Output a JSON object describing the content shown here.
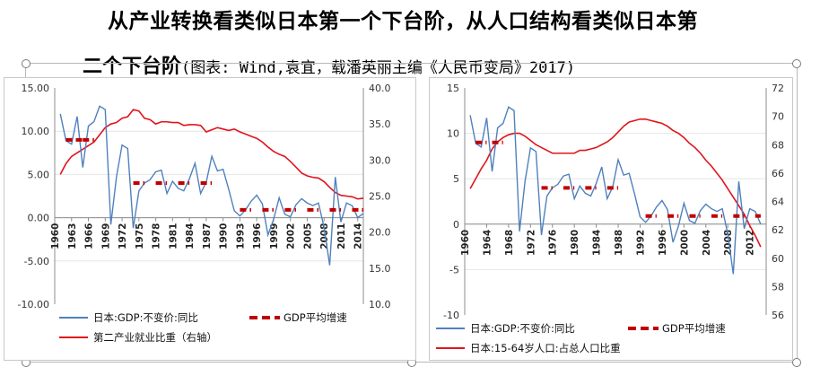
{
  "title": {
    "line1": "从产业转换看类似日本第一个下台阶，从人口结构看类似日本第",
    "line2_main": "二个下台阶",
    "line2_source": "(图表: Wind,袁宜，载潘英丽主编《人民币变局》2017)"
  },
  "colors": {
    "blue": "#4f81bd",
    "red": "#e0141c",
    "dash": "#c00000"
  },
  "chart_data": [
    {
      "type": "line",
      "x": [
        1961,
        1962,
        1963,
        1964,
        1965,
        1966,
        1967,
        1968,
        1969,
        1970,
        1971,
        1972,
        1973,
        1974,
        1975,
        1976,
        1977,
        1978,
        1979,
        1980,
        1981,
        1982,
        1983,
        1984,
        1985,
        1986,
        1987,
        1988,
        1989,
        1990,
        1991,
        1992,
        1993,
        1994,
        1995,
        1996,
        1997,
        1998,
        1999,
        2000,
        2001,
        2002,
        2003,
        2004,
        2005,
        2006,
        2007,
        2008,
        2009,
        2010,
        2011,
        2012,
        2013,
        2014,
        2015
      ],
      "xticks": [
        "1960",
        "1963",
        "1966",
        "1969",
        "1972",
        "1975",
        "1978",
        "1981",
        "1984",
        "1987",
        "1990",
        "1993",
        "1996",
        "1999",
        "2002",
        "2005",
        "2008",
        "2011",
        "2014"
      ],
      "xtick_years": [
        1960,
        1963,
        1966,
        1969,
        1972,
        1975,
        1978,
        1981,
        1984,
        1987,
        1990,
        1993,
        1996,
        1999,
        2002,
        2005,
        2008,
        2011,
        2014
      ],
      "xlim": [
        1960,
        2015
      ],
      "ylim_left": [
        -10,
        15
      ],
      "yticks_left": [
        "15.00",
        "10.00",
        "5.00",
        "0.00",
        "-5.00",
        "-10.00"
      ],
      "ylim_right": [
        10,
        40
      ],
      "yticks_right": [
        "40.0",
        "35.0",
        "30.0",
        "25.0",
        "20.0",
        "15.0",
        "10.0"
      ],
      "series": [
        {
          "name": "日本:GDP:不变价:同比",
          "axis": "left",
          "values": [
            12.0,
            8.9,
            8.5,
            11.7,
            5.8,
            10.6,
            11.1,
            12.9,
            12.5,
            -0.8,
            4.7,
            8.4,
            8.0,
            -1.2,
            3.1,
            4.0,
            4.4,
            5.3,
            5.5,
            2.8,
            4.2,
            3.4,
            3.1,
            4.5,
            6.3,
            2.8,
            4.1,
            7.1,
            5.4,
            5.6,
            3.3,
            0.8,
            0.2,
            0.9,
            1.9,
            2.6,
            1.6,
            -2.0,
            -0.2,
            2.3,
            0.4,
            0.1,
            1.5,
            2.2,
            1.7,
            1.4,
            1.7,
            -1.1,
            -5.5,
            4.7,
            -0.5,
            1.7,
            1.4,
            0.0,
            0.5
          ]
        },
        {
          "name": "第二产业就业比重（右轴）",
          "axis": "right",
          "values": [
            28.0,
            29.5,
            30.5,
            31.0,
            31.5,
            32.0,
            32.5,
            33.5,
            34.5,
            35.0,
            35.2,
            35.8,
            36.0,
            37.0,
            36.8,
            35.8,
            35.6,
            35.0,
            35.3,
            35.3,
            35.2,
            35.2,
            34.8,
            34.9,
            34.9,
            34.8,
            33.9,
            34.2,
            34.5,
            34.3,
            34.1,
            34.3,
            33.9,
            33.6,
            33.3,
            33.0,
            32.5,
            31.8,
            31.2,
            30.8,
            30.5,
            29.8,
            29.0,
            28.2,
            27.8,
            27.6,
            27.5,
            27.0,
            26.2,
            25.5,
            25.1,
            25.0,
            24.9,
            24.6,
            24.7
          ]
        },
        {
          "name": "GDP平均增速",
          "axis": "left",
          "style": "dashed",
          "segments": [
            {
              "x": [
                1962,
                1965
              ],
              "y": 9.0
            },
            {
              "x": [
                1965,
                1967
              ],
              "y": 9.0
            },
            {
              "x": [
                1974,
                1976
              ],
              "y": 4.0
            },
            {
              "x": [
                1978,
                1980
              ],
              "y": 4.0
            },
            {
              "x": [
                1982,
                1984
              ],
              "y": 4.0
            },
            {
              "x": [
                1986,
                1988
              ],
              "y": 4.0
            },
            {
              "x": [
                1993,
                1995
              ],
              "y": 0.9
            },
            {
              "x": [
                1997,
                1999
              ],
              "y": 0.9
            },
            {
              "x": [
                2001,
                2003
              ],
              "y": 0.9
            },
            {
              "x": [
                2005,
                2007
              ],
              "y": 0.9
            },
            {
              "x": [
                2009,
                2011
              ],
              "y": 0.9
            },
            {
              "x": [
                2013,
                2015
              ],
              "y": 0.9
            }
          ]
        }
      ],
      "legend": [
        {
          "label": "日本:GDP:不变价:同比",
          "kind": "blue"
        },
        {
          "label": "GDP平均增速",
          "kind": "dash"
        },
        {
          "label": "第二产业就业比重（右轴）",
          "kind": "red"
        }
      ]
    },
    {
      "type": "line",
      "x": [
        1961,
        1962,
        1963,
        1964,
        1965,
        1966,
        1967,
        1968,
        1969,
        1970,
        1971,
        1972,
        1973,
        1974,
        1975,
        1976,
        1977,
        1978,
        1979,
        1980,
        1981,
        1982,
        1983,
        1984,
        1985,
        1986,
        1987,
        1988,
        1989,
        1990,
        1991,
        1992,
        1993,
        1994,
        1995,
        1996,
        1997,
        1998,
        1999,
        2000,
        2001,
        2002,
        2003,
        2004,
        2005,
        2006,
        2007,
        2008,
        2009,
        2010,
        2011,
        2012,
        2013,
        2014
      ],
      "xticks": [
        "1960",
        "1964",
        "1968",
        "1972",
        "1976",
        "1980",
        "1984",
        "1988",
        "1992",
        "1996",
        "2000",
        "2004",
        "2008",
        "2012"
      ],
      "xtick_years": [
        1960,
        1964,
        1968,
        1972,
        1976,
        1980,
        1984,
        1988,
        1992,
        1996,
        2000,
        2004,
        2008,
        2012
      ],
      "xlim": [
        1960,
        2015
      ],
      "ylim_left": [
        -10,
        15
      ],
      "yticks_left": [
        "15",
        "10",
        "5",
        "0",
        "-5",
        "-10"
      ],
      "ylim_right": [
        56,
        72
      ],
      "yticks_right": [
        "72",
        "70",
        "68",
        "66",
        "64",
        "62",
        "60",
        "58",
        "56"
      ],
      "series": [
        {
          "name": "日本:GDP:不变价:同比",
          "axis": "left",
          "values": [
            12.0,
            8.9,
            8.5,
            11.7,
            5.8,
            10.6,
            11.1,
            12.9,
            12.5,
            -0.8,
            4.7,
            8.4,
            8.0,
            -1.2,
            3.1,
            4.0,
            4.4,
            5.3,
            5.5,
            2.8,
            4.2,
            3.4,
            3.1,
            4.5,
            6.3,
            2.8,
            4.1,
            7.1,
            5.4,
            5.6,
            3.3,
            0.8,
            0.2,
            0.9,
            1.9,
            2.6,
            1.6,
            -2.0,
            -0.2,
            2.3,
            0.4,
            0.1,
            1.5,
            2.2,
            1.7,
            1.4,
            1.7,
            -1.1,
            -5.5,
            4.7,
            -0.5,
            1.7,
            1.4,
            0.0
          ]
        },
        {
          "name": "日本:15-64岁人口:占总人口比重",
          "axis": "right",
          "values": [
            64.9,
            65.6,
            66.3,
            66.9,
            67.7,
            68.2,
            68.5,
            68.7,
            68.8,
            68.8,
            68.6,
            68.3,
            68.0,
            67.8,
            67.6,
            67.4,
            67.4,
            67.4,
            67.4,
            67.4,
            67.6,
            67.6,
            67.7,
            67.8,
            68.0,
            68.2,
            68.5,
            68.9,
            69.3,
            69.6,
            69.7,
            69.8,
            69.8,
            69.7,
            69.6,
            69.5,
            69.3,
            69.0,
            68.8,
            68.5,
            68.1,
            67.8,
            67.4,
            66.9,
            66.5,
            66.0,
            65.5,
            64.9,
            64.3,
            63.7,
            63.1,
            62.3,
            61.6,
            60.8
          ]
        },
        {
          "name": "GDP平均增速",
          "axis": "left",
          "style": "dashed",
          "segments": [
            {
              "x": [
                1962,
                1964
              ],
              "y": 9.0
            },
            {
              "x": [
                1965,
                1967
              ],
              "y": 9.0
            },
            {
              "x": [
                1974,
                1976
              ],
              "y": 4.0
            },
            {
              "x": [
                1978,
                1980
              ],
              "y": 4.0
            },
            {
              "x": [
                1982,
                1984
              ],
              "y": 4.0
            },
            {
              "x": [
                1986,
                1988
              ],
              "y": 4.0
            },
            {
              "x": [
                1993,
                1995
              ],
              "y": 0.9
            },
            {
              "x": [
                1997,
                1999
              ],
              "y": 0.9
            },
            {
              "x": [
                2001,
                2003
              ],
              "y": 0.9
            },
            {
              "x": [
                2005,
                2007
              ],
              "y": 0.9
            },
            {
              "x": [
                2009,
                2011
              ],
              "y": 0.9
            },
            {
              "x": [
                2013,
                2014
              ],
              "y": 0.9
            }
          ]
        }
      ],
      "legend": [
        {
          "label": "日本:GDP:不变价:同比",
          "kind": "blue"
        },
        {
          "label": "GDP平均增速",
          "kind": "dash"
        },
        {
          "label": "日本:15-64岁人口:占总人口比重",
          "kind": "red"
        }
      ]
    }
  ]
}
